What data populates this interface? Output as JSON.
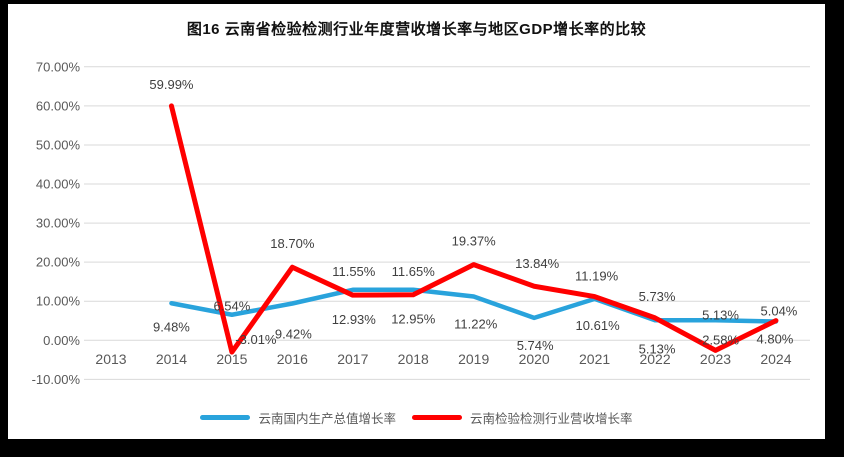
{
  "title": "图16  云南省检验检测行业年度营收增长率与地区GDP增长率的比较",
  "legend": {
    "gdp": "云南国内生产总值增长率",
    "industry": "云南检验检测行业营收增长率"
  },
  "colors": {
    "gdp_line": "#29A3DC",
    "industry_line": "#FF0000",
    "gridline": "#D9D9D9",
    "tick_text": "#595959",
    "label_text": "#404040",
    "frame": "#000000",
    "background": "#FFFFFF"
  },
  "chart_data": {
    "type": "line",
    "title": "图16  云南省检验检测行业年度营收增长率与地区GDP增长率的比较",
    "xlabel": "",
    "ylabel": "",
    "categories": [
      "2013",
      "2014",
      "2015",
      "2016",
      "2017",
      "2018",
      "2019",
      "2020",
      "2021",
      "2022",
      "2023",
      "2024"
    ],
    "y_ticks": [
      "70.00%",
      "60.00%",
      "50.00%",
      "40.00%",
      "30.00%",
      "20.00%",
      "10.00%",
      "0.00%",
      "-10.00%"
    ],
    "ylim": [
      -10,
      70
    ],
    "grid": true,
    "legend_position": "bottom",
    "series": [
      {
        "id": "gdp-growth",
        "name": "云南国内生产总值增长率",
        "color": "#29A3DC",
        "values": [
          null,
          9.48,
          6.54,
          9.42,
          12.93,
          12.95,
          11.22,
          5.74,
          10.61,
          5.13,
          5.13,
          4.8
        ],
        "labels": [
          null,
          "9.48%",
          "6.54%",
          "9.42%",
          "12.93%",
          "12.95%",
          "11.22%",
          "5.74%",
          "10.61%",
          "5.13%",
          "5.13%",
          "4.80%"
        ],
        "label_offsets": [
          null,
          [
            0,
            28
          ],
          [
            0,
            -4
          ],
          [
            1,
            35
          ],
          [
            1,
            34
          ],
          [
            0,
            34
          ],
          [
            2,
            32
          ],
          [
            1,
            32
          ],
          [
            3,
            31
          ],
          [
            2,
            33
          ],
          [
            5,
            -1
          ],
          [
            -1,
            22
          ]
        ]
      },
      {
        "id": "industry-revenue-growth",
        "name": "云南检验检测行业营收增长率",
        "color": "#FF0000",
        "values": [
          null,
          59.99,
          -3.01,
          18.7,
          11.55,
          11.65,
          19.37,
          13.84,
          11.19,
          5.73,
          -2.58,
          5.04
        ],
        "labels": [
          null,
          "59.99%",
          "-3.01%",
          "18.70%",
          "11.55%",
          "11.65%",
          "19.37%",
          "13.84%",
          "11.19%",
          "5.73%",
          "-2.58%",
          "5.04%"
        ],
        "label_offsets": [
          null,
          [
            0,
            -17
          ],
          [
            24,
            -8
          ],
          [
            0,
            -19
          ],
          [
            1,
            -19
          ],
          [
            0,
            -19
          ],
          [
            0,
            -19
          ],
          [
            3,
            -18
          ],
          [
            2,
            -16
          ],
          [
            2,
            -17
          ],
          [
            3,
            -6
          ],
          [
            3,
            -5
          ]
        ]
      }
    ]
  }
}
